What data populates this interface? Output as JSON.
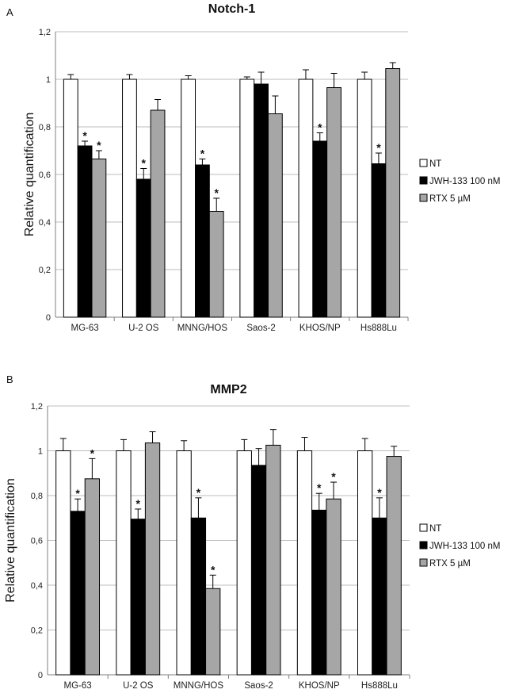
{
  "chart_data": [
    {
      "type": "bar",
      "panel_label": "A",
      "title": "Notch-1",
      "ylabel": "Relative quantification",
      "xlabel": "",
      "ylim": [
        0,
        1.2
      ],
      "yticks": [
        "0",
        "0,2",
        "0,4",
        "0,6",
        "0,8",
        "1",
        "1,2"
      ],
      "grid": true,
      "legend_position": "right",
      "categories": [
        "MG-63",
        "U-2 OS",
        "MNNG/HOS",
        "Saos-2",
        "KHOS/NP",
        "Hs888Lu"
      ],
      "series": [
        {
          "name": "NT",
          "color": "#ffffff",
          "values": [
            1.0,
            1.0,
            1.0,
            1.0,
            1.0,
            1.0
          ],
          "errors": [
            0.02,
            0.02,
            0.015,
            0.01,
            0.04,
            0.03
          ],
          "significant": [
            false,
            false,
            false,
            false,
            false,
            false
          ]
        },
        {
          "name": "JWH-133 100 nM",
          "color": "#000000",
          "values": [
            0.72,
            0.58,
            0.64,
            0.98,
            0.74,
            0.645
          ],
          "errors": [
            0.02,
            0.045,
            0.025,
            0.05,
            0.035,
            0.045
          ],
          "significant": [
            true,
            true,
            true,
            false,
            true,
            true
          ]
        },
        {
          "name": "RTX 5 µM",
          "color": "#a6a6a6",
          "values": [
            0.665,
            0.87,
            0.445,
            0.855,
            0.965,
            1.045
          ],
          "errors": [
            0.035,
            0.045,
            0.055,
            0.075,
            0.06,
            0.025
          ],
          "significant": [
            true,
            false,
            true,
            false,
            false,
            false
          ]
        }
      ]
    },
    {
      "type": "bar",
      "panel_label": "B",
      "title": "MMP2",
      "ylabel": "Relative quantification",
      "xlabel": "",
      "ylim": [
        0,
        1.2
      ],
      "yticks": [
        "0",
        "0,2",
        "0,4",
        "0,6",
        "0,8",
        "1",
        "1,2"
      ],
      "grid": true,
      "legend_position": "right",
      "categories": [
        "MG-63",
        "U-2 OS",
        "MNNG/HOS",
        "Saos-2",
        "KHOS/NP",
        "Hs888Lu"
      ],
      "series": [
        {
          "name": "NT",
          "color": "#ffffff",
          "values": [
            1.0,
            1.0,
            1.0,
            1.0,
            1.0,
            1.0
          ],
          "errors": [
            0.055,
            0.05,
            0.045,
            0.05,
            0.06,
            0.055
          ],
          "significant": [
            false,
            false,
            false,
            false,
            false,
            false
          ]
        },
        {
          "name": "JWH-133 100 nM",
          "color": "#000000",
          "values": [
            0.73,
            0.695,
            0.7,
            0.935,
            0.735,
            0.7
          ],
          "errors": [
            0.055,
            0.045,
            0.09,
            0.075,
            0.075,
            0.09
          ],
          "significant": [
            true,
            true,
            true,
            false,
            true,
            true
          ]
        },
        {
          "name": "RTX 5 µM",
          "color": "#a6a6a6",
          "values": [
            0.875,
            1.035,
            0.385,
            1.025,
            0.785,
            0.975
          ],
          "errors": [
            0.09,
            0.05,
            0.06,
            0.07,
            0.075,
            0.045
          ],
          "significant": [
            true,
            false,
            true,
            false,
            true,
            false
          ]
        }
      ]
    }
  ]
}
